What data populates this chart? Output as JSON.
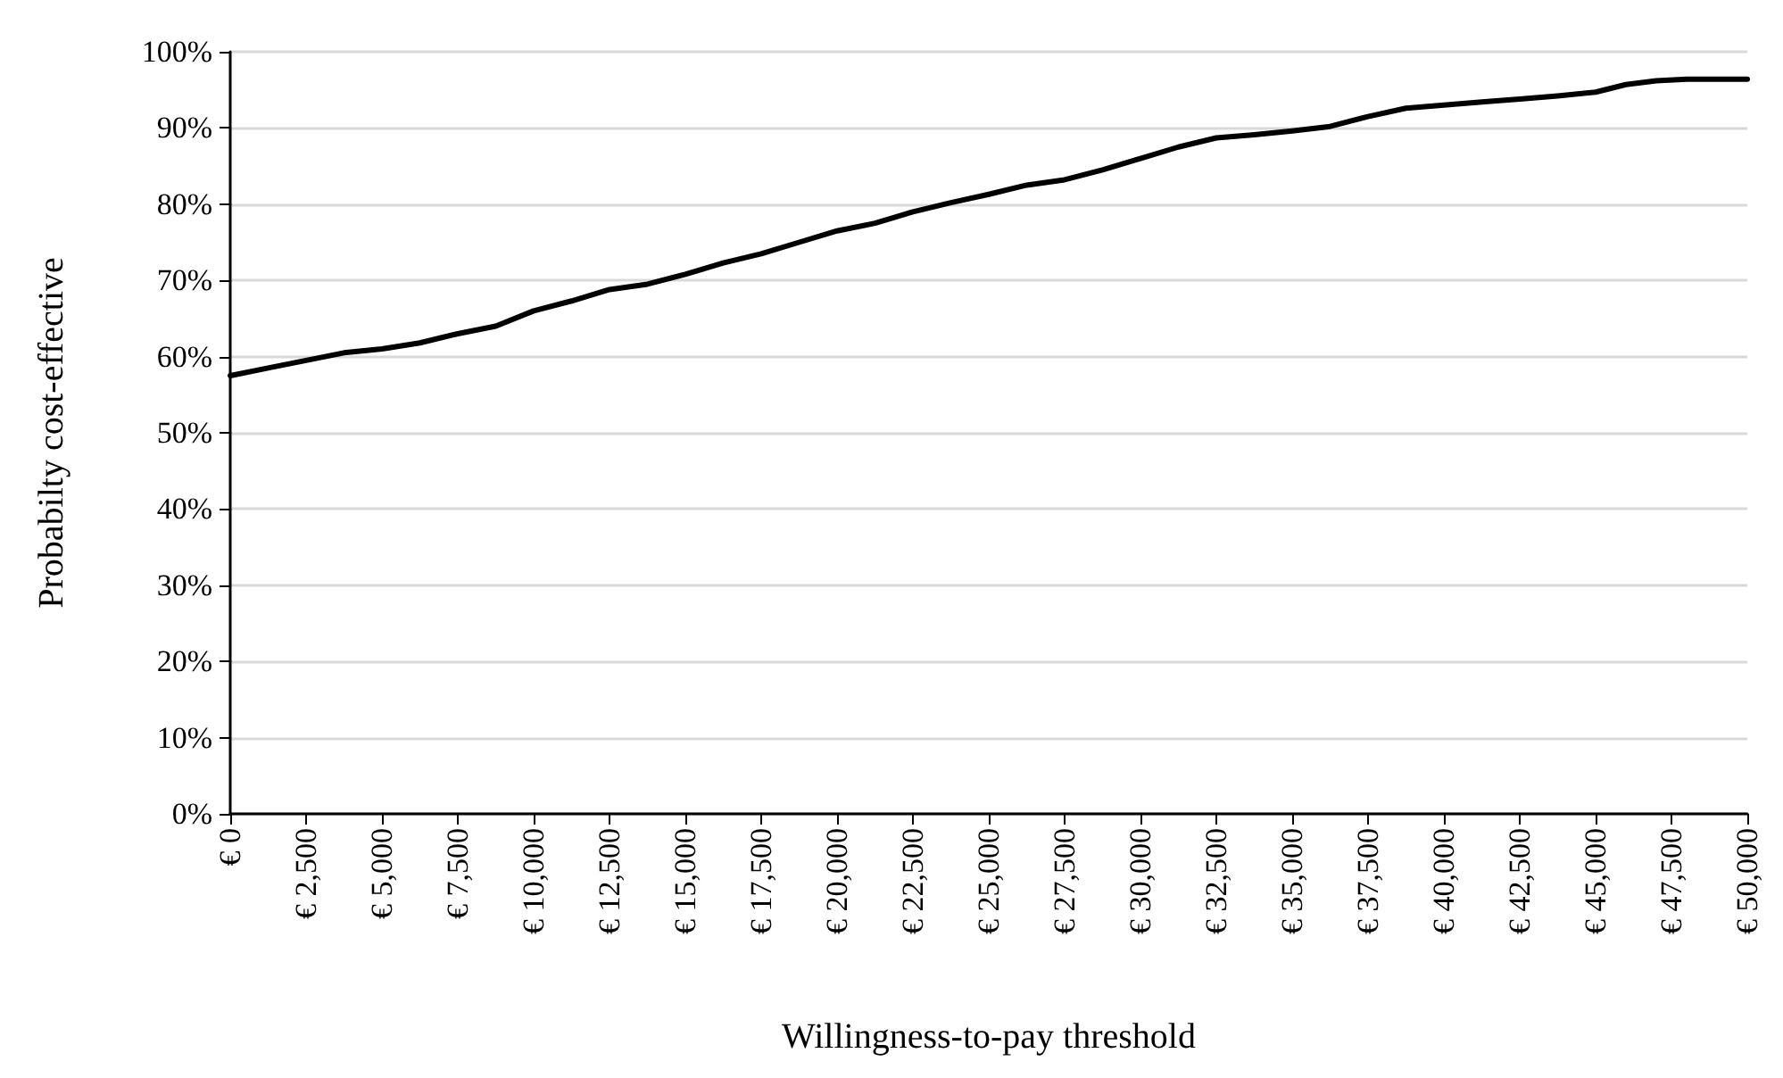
{
  "chart_data": {
    "type": "line",
    "xlabel": "Willingness-to-pay threshold",
    "ylabel": "Probabilty cost-effective",
    "x": [
      0,
      1250,
      2500,
      3750,
      5000,
      6250,
      7500,
      8750,
      10000,
      11250,
      12500,
      13750,
      15000,
      16250,
      17500,
      18750,
      20000,
      21250,
      22500,
      23750,
      25000,
      26250,
      27500,
      28750,
      30000,
      31250,
      32500,
      33750,
      35000,
      36250,
      37500,
      38750,
      40000,
      41250,
      42500,
      43750,
      45000,
      46000,
      47000,
      48000,
      50000
    ],
    "series": [
      {
        "color": "#000000",
        "values": [
          57.5,
          58.5,
          59.5,
          60.5,
          61,
          61.8,
          63,
          64,
          66,
          67.3,
          68.8,
          69.5,
          70.8,
          72.3,
          73.5,
          75,
          76.5,
          77.5,
          79,
          80.2,
          81.3,
          82.5,
          83.2,
          84.5,
          86,
          87.5,
          88.7,
          89.1,
          89.6,
          90.2,
          91.5,
          92.6,
          93,
          93.4,
          93.8,
          94.2,
          94.7,
          95.7,
          96.2,
          96.4,
          96.4
        ]
      }
    ],
    "xlim": [
      0,
      50000
    ],
    "ylim": [
      0,
      100
    ],
    "xticks": [
      {
        "value": 0,
        "label": "€ 0"
      },
      {
        "value": 2500,
        "label": "€ 2,500"
      },
      {
        "value": 5000,
        "label": "€ 5,000"
      },
      {
        "value": 7500,
        "label": "€ 7,500"
      },
      {
        "value": 10000,
        "label": "€ 10,000"
      },
      {
        "value": 12500,
        "label": "€ 12,500"
      },
      {
        "value": 15000,
        "label": "€ 15,000"
      },
      {
        "value": 17500,
        "label": "€ 17,500"
      },
      {
        "value": 20000,
        "label": "€ 20,000"
      },
      {
        "value": 22500,
        "label": "€ 22,500"
      },
      {
        "value": 25000,
        "label": "€ 25,000"
      },
      {
        "value": 27500,
        "label": "€ 27,500"
      },
      {
        "value": 30000,
        "label": "€ 30,000"
      },
      {
        "value": 32500,
        "label": "€ 32,500"
      },
      {
        "value": 35000,
        "label": "€ 35,000"
      },
      {
        "value": 37500,
        "label": "€ 37,500"
      },
      {
        "value": 40000,
        "label": "€ 40,000"
      },
      {
        "value": 42500,
        "label": "€ 42,500"
      },
      {
        "value": 45000,
        "label": "€ 45,000"
      },
      {
        "value": 47500,
        "label": "€ 47,500"
      },
      {
        "value": 50000,
        "label": "€ 50,000"
      }
    ],
    "yticks": [
      {
        "value": 0,
        "label": "0%"
      },
      {
        "value": 10,
        "label": "10%"
      },
      {
        "value": 20,
        "label": "20%"
      },
      {
        "value": 30,
        "label": "30%"
      },
      {
        "value": 40,
        "label": "40%"
      },
      {
        "value": 50,
        "label": "50%"
      },
      {
        "value": 60,
        "label": "60%"
      },
      {
        "value": 70,
        "label": "70%"
      },
      {
        "value": 80,
        "label": "80%"
      },
      {
        "value": 90,
        "label": "90%"
      },
      {
        "value": 100,
        "label": "100%"
      }
    ],
    "grid": "y",
    "marker": "none",
    "line_style": "solid"
  }
}
